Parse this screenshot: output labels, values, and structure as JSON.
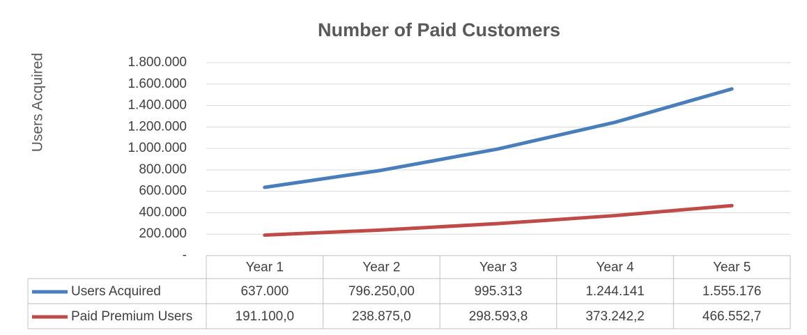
{
  "chart_data": {
    "type": "line",
    "title": "Number of Paid Customers",
    "y_label": "Users Acquired",
    "categories": [
      "Year 1",
      "Year 2",
      "Year 3",
      "Year 4",
      "Year 5"
    ],
    "series": [
      {
        "name": "Users Acquired",
        "color": "#4a7ebb",
        "values": [
          637000,
          796250,
          995313,
          1244141,
          1555176
        ],
        "value_labels": [
          "637.000",
          "796.250,00",
          "995.313",
          "1.244.141",
          "1.555.176"
        ]
      },
      {
        "name": "Paid Premium Users",
        "color": "#be4b48",
        "values": [
          191100,
          238875,
          298593.8,
          373242.2,
          466552.7
        ],
        "value_labels": [
          "191.100,0",
          "238.875,0",
          "298.593,8",
          "373.242,2",
          "466.552,7"
        ]
      }
    ],
    "ylim": [
      0,
      1800000
    ],
    "yticks": [
      {
        "value": 0,
        "label": "-"
      },
      {
        "value": 200000,
        "label": "200.000"
      },
      {
        "value": 400000,
        "label": "400.000"
      },
      {
        "value": 600000,
        "label": "600.000"
      },
      {
        "value": 800000,
        "label": "800.000"
      },
      {
        "value": 1000000,
        "label": "1.000.000"
      },
      {
        "value": 1200000,
        "label": "1.200.000"
      },
      {
        "value": 1400000,
        "label": "1.400.000"
      },
      {
        "value": 1600000,
        "label": "1.600.000"
      },
      {
        "value": 1800000,
        "label": "1.800.000"
      }
    ],
    "grid": true,
    "data_table": true
  }
}
